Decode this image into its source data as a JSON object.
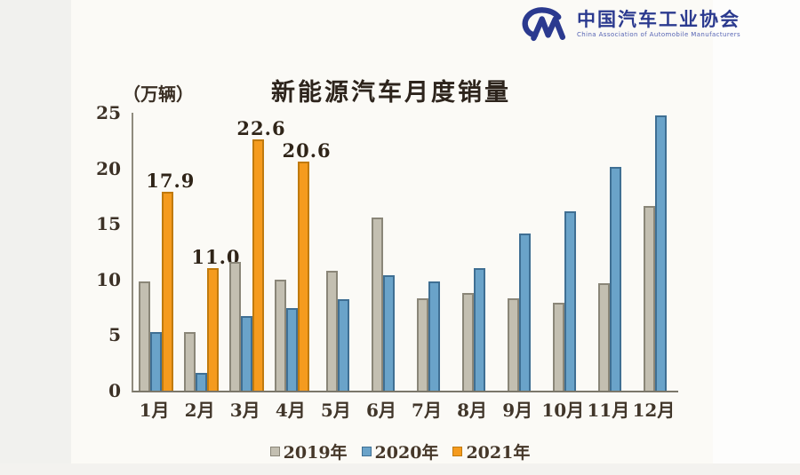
{
  "logo": {
    "org_name_cn": "中国汽车工业协会",
    "org_name_en": "China Association of Automobile Manufacturers",
    "brand_color": "#2b3a8f"
  },
  "chart_data": {
    "type": "bar",
    "title": "新能源汽车月度销量",
    "unit_label": "（万辆）",
    "categories": [
      "1月",
      "2月",
      "3月",
      "4月",
      "5月",
      "6月",
      "7月",
      "8月",
      "9月",
      "10月",
      "11月",
      "12月"
    ],
    "series": [
      {
        "name": "2019年",
        "color": "#c3bfb1",
        "border_color": "#8a8678",
        "values": [
          9.8,
          5.3,
          11.6,
          10.0,
          10.8,
          15.6,
          8.3,
          8.8,
          8.3,
          7.9,
          9.7,
          16.6
        ]
      },
      {
        "name": "2020年",
        "color": "#6aa3c9",
        "border_color": "#3f6f93",
        "values": [
          5.3,
          1.6,
          6.7,
          7.4,
          8.2,
          10.4,
          9.8,
          11.0,
          14.1,
          16.1,
          20.1,
          24.8
        ]
      },
      {
        "name": "2021年",
        "color": "#f59b1e",
        "border_color": "#c07a0e",
        "show_data_labels": true,
        "values": [
          17.9,
          11.0,
          22.6,
          20.6,
          null,
          null,
          null,
          null,
          null,
          null,
          null,
          null
        ]
      }
    ],
    "data_labels": [
      "17.9",
      "11.0",
      "22.6",
      "20.6"
    ],
    "y_ticks": [
      0,
      5,
      10,
      15,
      20,
      25
    ],
    "ylim": [
      0,
      25
    ],
    "grid": false,
    "legend_position": "bottom"
  }
}
